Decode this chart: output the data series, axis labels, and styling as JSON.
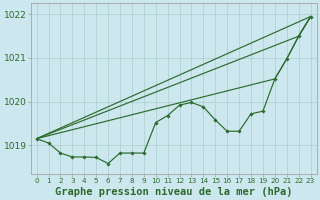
{
  "xlabel": "Graphe pression niveau de la mer (hPa)",
  "x": [
    0,
    1,
    2,
    3,
    4,
    5,
    6,
    7,
    8,
    9,
    10,
    11,
    12,
    13,
    14,
    15,
    16,
    17,
    18,
    19,
    20,
    21,
    22,
    23
  ],
  "line_straight1": {
    "x": [
      0,
      23
    ],
    "y": [
      1019.15,
      1021.95
    ]
  },
  "line_straight2": {
    "x": [
      0,
      22,
      23
    ],
    "y": [
      1019.15,
      1021.5,
      1021.95
    ]
  },
  "line_zigzag": [
    1019.15,
    1019.05,
    1018.82,
    1018.73,
    1018.73,
    1018.72,
    1018.58,
    1018.82,
    1018.82,
    1018.82,
    1019.52,
    1019.68,
    1019.92,
    1019.98,
    1019.88,
    1019.58,
    1019.32,
    1019.32,
    1019.72,
    1019.78,
    1020.52,
    1020.98,
    1021.5,
    1021.95
  ],
  "line_partial": {
    "x": [
      0,
      20,
      21,
      22,
      23
    ],
    "y": [
      1019.15,
      1020.52,
      1020.98,
      1021.5,
      1021.95
    ]
  },
  "bg_color": "#cce8ee",
  "line_color": "#2d6a2d",
  "grid_color": "#aacfcf",
  "ylim_min": 1018.35,
  "ylim_max": 1022.25,
  "yticks": [
    1019,
    1020,
    1021,
    1022
  ],
  "tick_label_color": "#2d6a2d",
  "label_color": "#2d6a2d",
  "label_fontsize": 7.5,
  "tick_fontsize": 6.5,
  "xtick_fontsize": 5.2
}
